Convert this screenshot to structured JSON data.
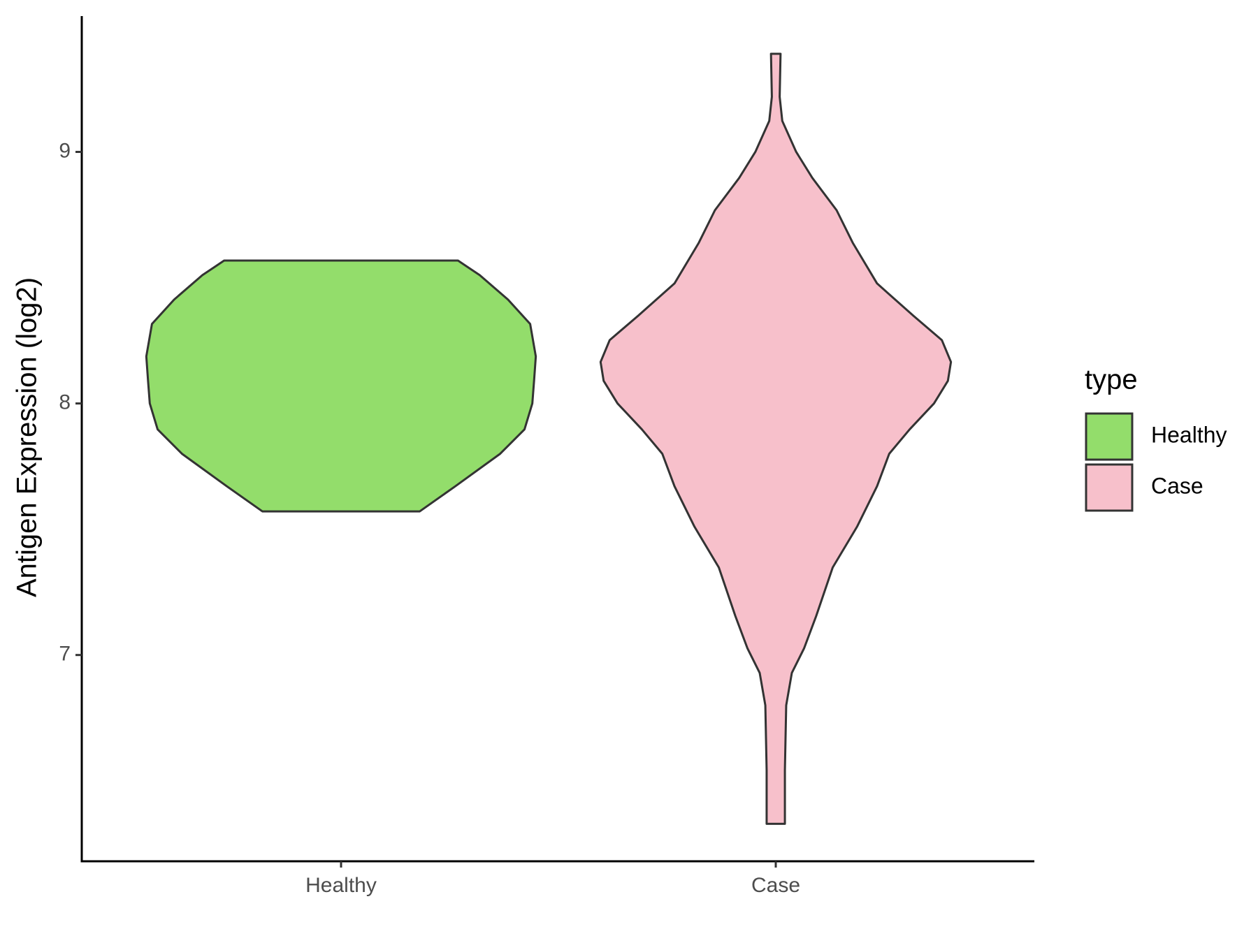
{
  "chart_data": {
    "type": "violin",
    "y_label": "Antigen Expression (log2)",
    "categories": [
      "Healthy",
      "Case"
    ],
    "legend_title": "type",
    "legend_position": "right",
    "ylim": [
      6.18,
      9.54
    ],
    "yticks": [
      7,
      8,
      9
    ],
    "series": [
      {
        "name": "Healthy",
        "color": "#93dd6b",
        "y": [
          7.571,
          7.671,
          7.8,
          7.897,
          8.0,
          8.09,
          8.187,
          8.316,
          8.413,
          8.51,
          8.568
        ],
        "density": [
          0.181,
          0.263,
          0.366,
          0.422,
          0.44,
          0.444,
          0.448,
          0.435,
          0.384,
          0.319,
          0.269
        ]
      },
      {
        "name": "Case",
        "color": "#f7c0cb",
        "y": [
          6.329,
          6.542,
          6.8,
          6.929,
          7.026,
          7.155,
          7.348,
          7.51,
          7.671,
          7.8,
          7.897,
          8.0,
          8.09,
          8.165,
          8.252,
          8.348,
          8.477,
          8.639,
          8.768,
          8.897,
          9.0,
          9.123,
          9.219,
          9.39
        ],
        "density": [
          0.021,
          0.021,
          0.024,
          0.037,
          0.065,
          0.093,
          0.131,
          0.187,
          0.233,
          0.261,
          0.308,
          0.364,
          0.396,
          0.403,
          0.382,
          0.317,
          0.233,
          0.177,
          0.14,
          0.084,
          0.047,
          0.015,
          0.009,
          0.011
        ]
      }
    ]
  }
}
